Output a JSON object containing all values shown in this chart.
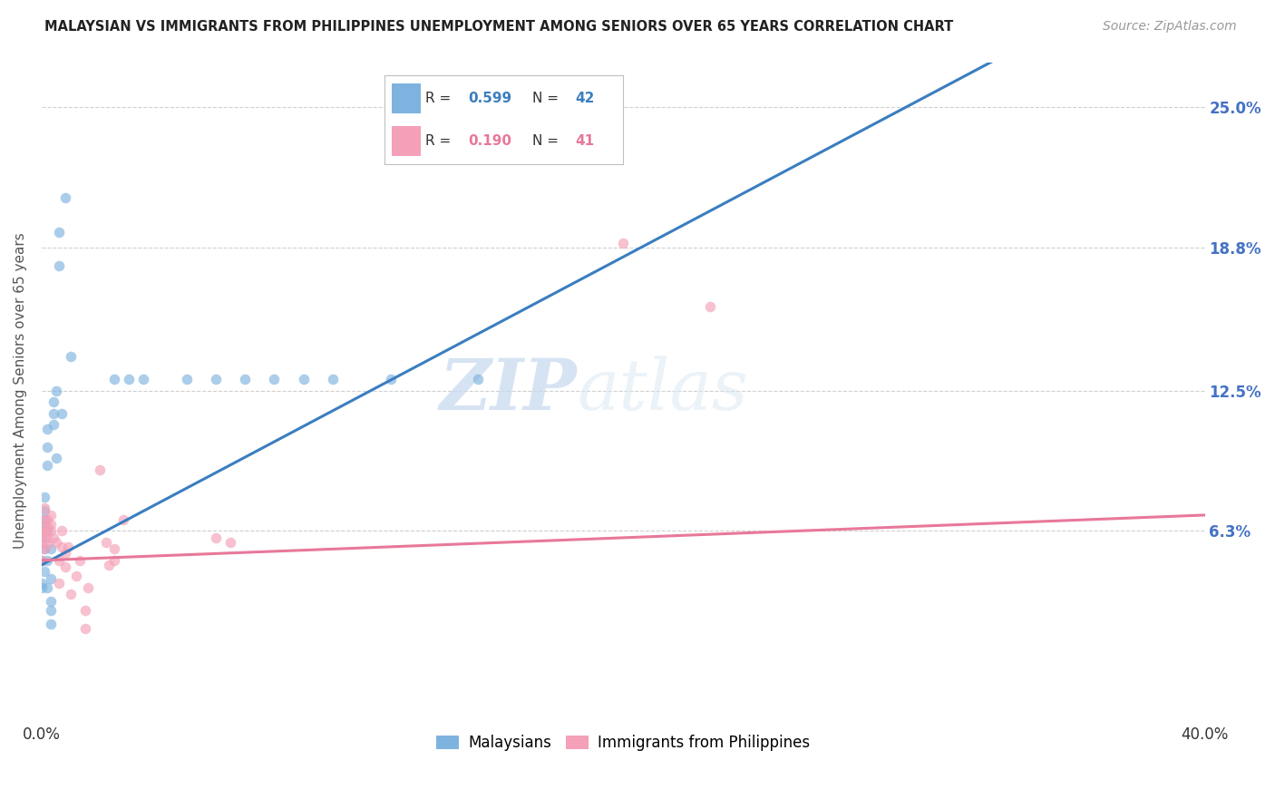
{
  "title": "MALAYSIAN VS IMMIGRANTS FROM PHILIPPINES UNEMPLOYMENT AMONG SENIORS OVER 65 YEARS CORRELATION CHART",
  "source": "Source: ZipAtlas.com",
  "ylabel": "Unemployment Among Seniors over 65 years",
  "ytick_labels": [
    "6.3%",
    "12.5%",
    "18.8%",
    "25.0%"
  ],
  "ytick_values": [
    0.063,
    0.125,
    0.188,
    0.25
  ],
  "legend_blue_R": "0.599",
  "legend_blue_N": "42",
  "legend_pink_R": "0.190",
  "legend_pink_N": "41",
  "watermark_zip": "ZIP",
  "watermark_atlas": "atlas",
  "blue_scatter": [
    [
      0.0,
      0.04
    ],
    [
      0.0,
      0.038
    ],
    [
      0.0,
      0.05
    ],
    [
      0.0,
      0.06
    ],
    [
      0.001,
      0.065
    ],
    [
      0.001,
      0.068
    ],
    [
      0.001,
      0.072
    ],
    [
      0.001,
      0.078
    ],
    [
      0.001,
      0.055
    ],
    [
      0.001,
      0.045
    ],
    [
      0.002,
      0.1
    ],
    [
      0.002,
      0.108
    ],
    [
      0.002,
      0.092
    ],
    [
      0.002,
      0.063
    ],
    [
      0.002,
      0.05
    ],
    [
      0.002,
      0.038
    ],
    [
      0.003,
      0.032
    ],
    [
      0.003,
      0.055
    ],
    [
      0.003,
      0.042
    ],
    [
      0.003,
      0.022
    ],
    [
      0.003,
      0.028
    ],
    [
      0.004,
      0.11
    ],
    [
      0.004,
      0.115
    ],
    [
      0.004,
      0.12
    ],
    [
      0.005,
      0.125
    ],
    [
      0.005,
      0.095
    ],
    [
      0.006,
      0.18
    ],
    [
      0.006,
      0.195
    ],
    [
      0.007,
      0.115
    ],
    [
      0.008,
      0.21
    ],
    [
      0.01,
      0.14
    ],
    [
      0.025,
      0.13
    ],
    [
      0.03,
      0.13
    ],
    [
      0.035,
      0.13
    ],
    [
      0.05,
      0.13
    ],
    [
      0.06,
      0.13
    ],
    [
      0.07,
      0.13
    ],
    [
      0.08,
      0.13
    ],
    [
      0.09,
      0.13
    ],
    [
      0.1,
      0.13
    ],
    [
      0.12,
      0.13
    ],
    [
      0.15,
      0.13
    ]
  ],
  "pink_scatter": [
    [
      0.0,
      0.05
    ],
    [
      0.0,
      0.058
    ],
    [
      0.001,
      0.063
    ],
    [
      0.001,
      0.068
    ],
    [
      0.001,
      0.073
    ],
    [
      0.001,
      0.063
    ],
    [
      0.001,
      0.055
    ],
    [
      0.001,
      0.06
    ],
    [
      0.002,
      0.068
    ],
    [
      0.002,
      0.065
    ],
    [
      0.002,
      0.06
    ],
    [
      0.002,
      0.057
    ],
    [
      0.002,
      0.063
    ],
    [
      0.003,
      0.07
    ],
    [
      0.003,
      0.066
    ],
    [
      0.003,
      0.063
    ],
    [
      0.004,
      0.06
    ],
    [
      0.005,
      0.058
    ],
    [
      0.006,
      0.05
    ],
    [
      0.006,
      0.04
    ],
    [
      0.007,
      0.056
    ],
    [
      0.007,
      0.063
    ],
    [
      0.008,
      0.053
    ],
    [
      0.008,
      0.047
    ],
    [
      0.009,
      0.056
    ],
    [
      0.01,
      0.035
    ],
    [
      0.012,
      0.043
    ],
    [
      0.013,
      0.05
    ],
    [
      0.015,
      0.02
    ],
    [
      0.015,
      0.028
    ],
    [
      0.016,
      0.038
    ],
    [
      0.02,
      0.09
    ],
    [
      0.022,
      0.058
    ],
    [
      0.023,
      0.048
    ],
    [
      0.025,
      0.055
    ],
    [
      0.025,
      0.05
    ],
    [
      0.028,
      0.068
    ],
    [
      0.06,
      0.06
    ],
    [
      0.065,
      0.058
    ],
    [
      0.2,
      0.19
    ],
    [
      0.23,
      0.162
    ]
  ],
  "blue_color": "#7eb3e0",
  "pink_color": "#f4a0b8",
  "blue_line_color": "#3a7ebf",
  "pink_line_color": "#e8789a",
  "background_color": "#ffffff",
  "grid_color": "#d0d0d0",
  "title_color": "#222222",
  "right_tick_color": "#4472c4",
  "scatter_alpha": 0.65,
  "scatter_size": 70,
  "xlim": [
    0.0,
    0.4
  ],
  "ylim": [
    -0.02,
    0.27
  ]
}
